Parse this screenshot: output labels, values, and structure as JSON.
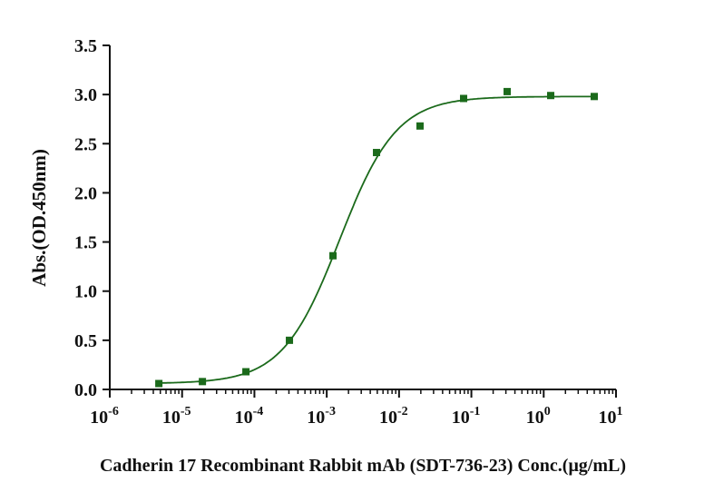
{
  "chart_data": {
    "type": "scatter",
    "title": "",
    "xlabel": "Cadherin 17 Recombinant Rabbit mAb (SDT-736-23) Conc.(μg/mL)",
    "ylabel": "Abs.(OD.450nm)",
    "xscale": "log",
    "xlim": [
      1e-06,
      10
    ],
    "ylim": [
      0,
      3.5
    ],
    "x_tick_exponents": [
      "-6",
      "-5",
      "-4",
      "-3",
      "-2",
      "-1",
      "0",
      "1"
    ],
    "x_tick_base": "10",
    "y_ticks": [
      "0.0",
      "0.5",
      "1.0",
      "1.5",
      "2.0",
      "2.5",
      "3.0",
      "3.5"
    ],
    "grid": false,
    "color": "#1b6a1b",
    "series": [
      {
        "name": "data",
        "x": [
          4.77e-06,
          1.91e-05,
          7.63e-05,
          0.000305,
          0.00122,
          0.00488,
          0.0195,
          0.0781,
          0.3125,
          1.25,
          5
        ],
        "y": [
          0.06,
          0.08,
          0.18,
          0.5,
          1.36,
          2.41,
          2.68,
          2.96,
          3.03,
          2.99,
          2.98
        ]
      }
    ],
    "fit": {
      "model": "4PL",
      "bottom": 0.06,
      "top": 2.98,
      "ec50": 0.0015,
      "hill": 1.1
    }
  }
}
